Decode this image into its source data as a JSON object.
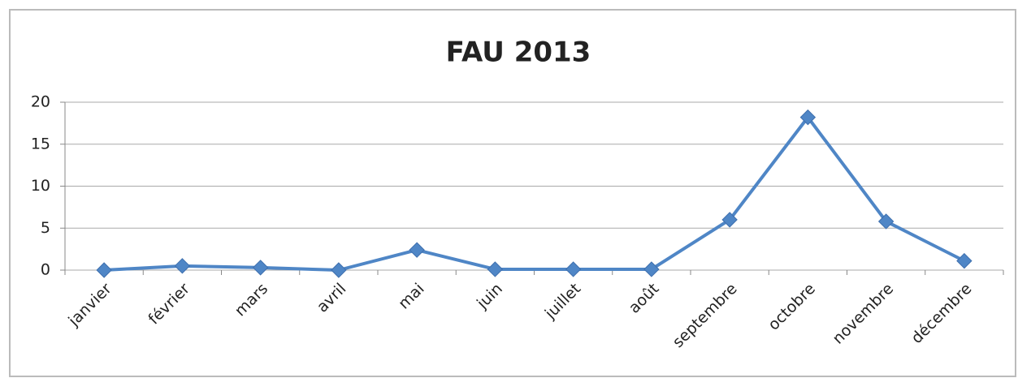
{
  "chart_data": {
    "type": "line",
    "title": "FAU 2013",
    "categories": [
      "janvier",
      "février",
      "mars",
      "avril",
      "mai",
      "juin",
      "juillet",
      "août",
      "septembre",
      "octobre",
      "novembre",
      "décembre"
    ],
    "values": [
      0,
      0.5,
      0.3,
      0,
      2.4,
      0.1,
      0.1,
      0.1,
      6,
      18.2,
      5.8,
      1.1
    ],
    "color": "#4f86c6",
    "ylim": [
      0,
      20
    ],
    "yticks": [
      0,
      5,
      10,
      15,
      20
    ],
    "grid": true
  }
}
